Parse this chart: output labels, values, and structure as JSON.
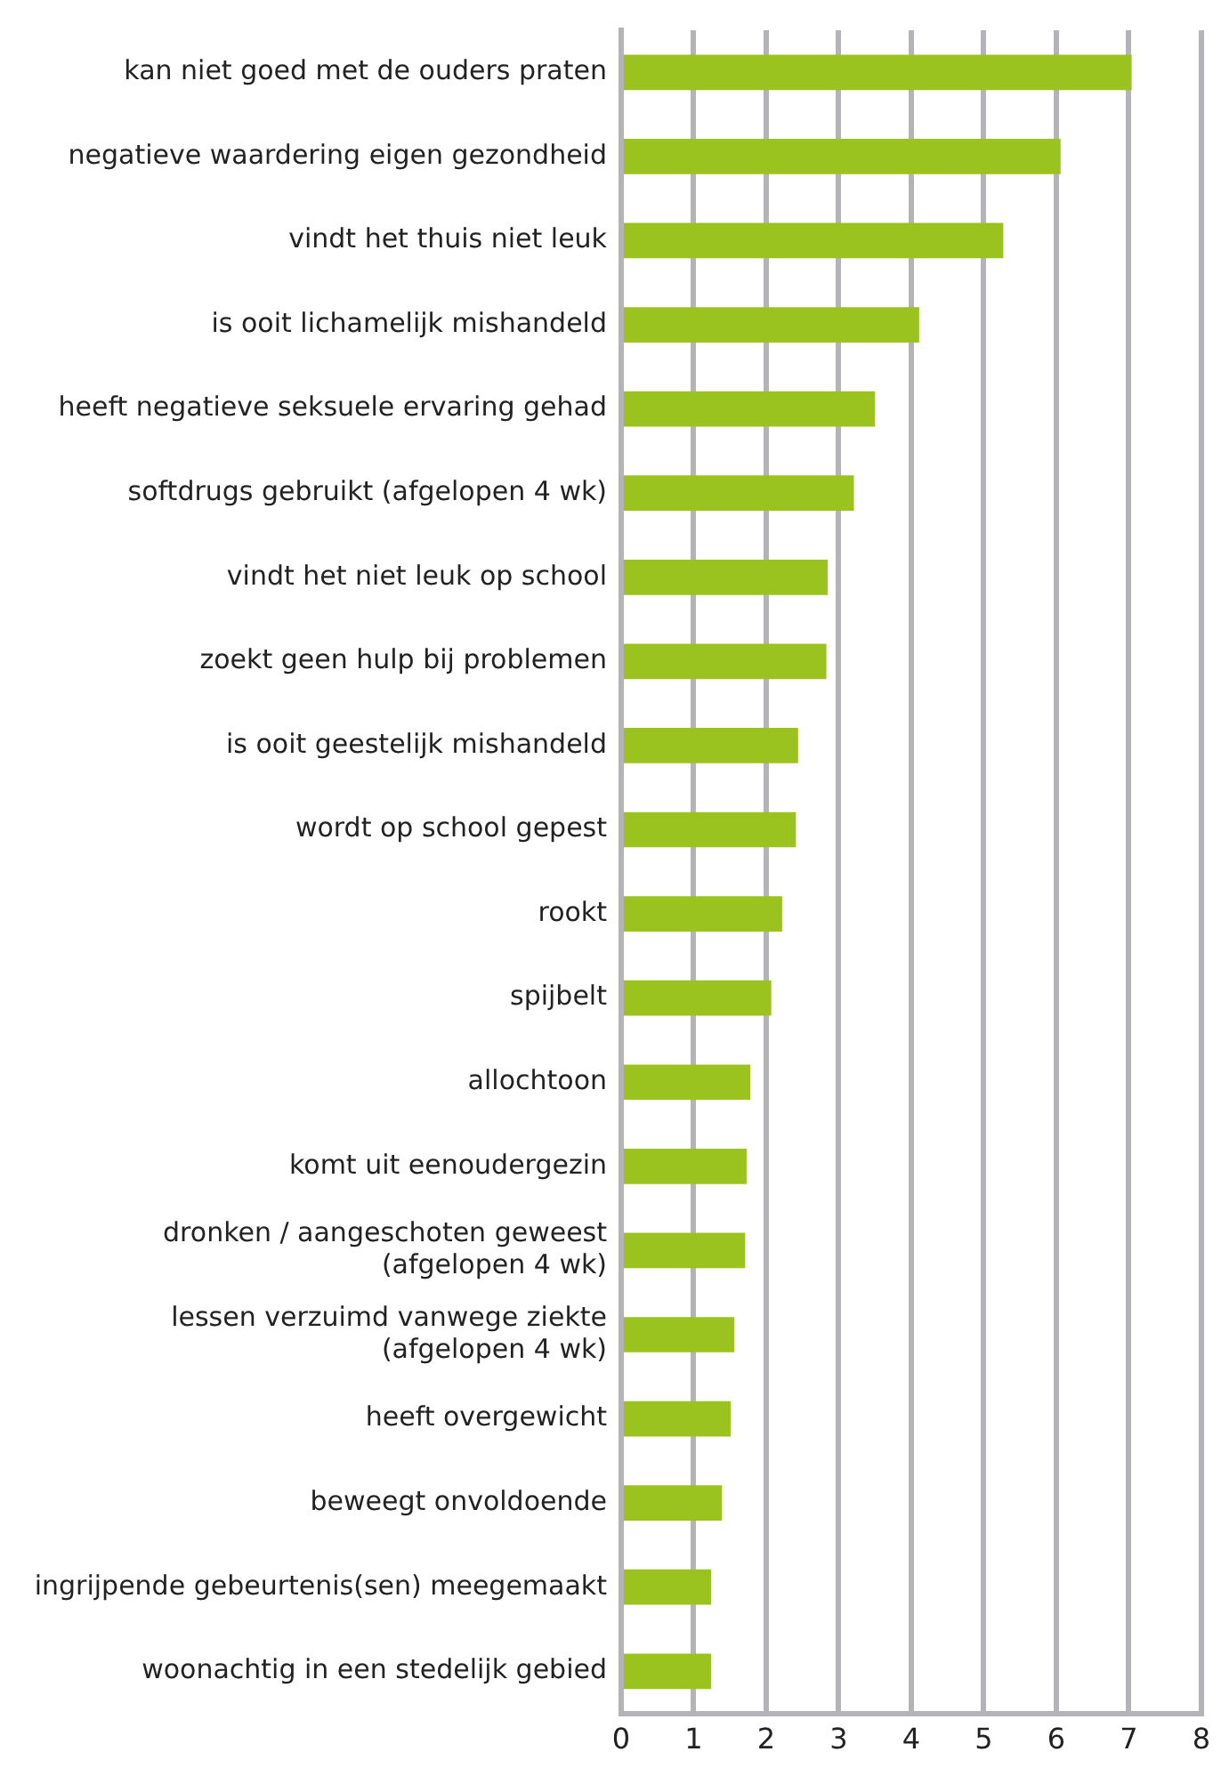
{
  "chart_data": {
    "type": "bar",
    "orientation": "horizontal",
    "color": "#9bc31f",
    "categories": [
      "kan niet goed met de ouders praten",
      "negatieve waardering eigen gezondheid",
      "vindt het thuis niet leuk",
      "is ooit lichamelijk mishandeld",
      "heeft negatieve seksuele ervaring gehad",
      "softdrugs gebruikt (afgelopen 4 wk)",
      "vindt het niet leuk op school",
      "zoekt geen hulp bij problemen",
      "is ooit geestelijk mishandeld",
      "wordt op school gepest",
      "rookt",
      "spijbelt",
      "allochtoon",
      "komt uit eenoudergezin",
      "dronken / aangeschoten geweest (afgelopen 4 wk)",
      "lessen verzuimd vanwege ziekte (afgelopen 4 wk)",
      "heeft overgewicht",
      "beweegt onvoldoende",
      "ingrijpende gebeurtenis(sen) meegemaakt",
      "woonachtig in een stedelijk gebied"
    ],
    "values": [
      7.04,
      6.06,
      5.27,
      4.11,
      3.5,
      3.21,
      2.85,
      2.83,
      2.44,
      2.41,
      2.22,
      2.07,
      1.78,
      1.73,
      1.71,
      1.56,
      1.51,
      1.39,
      1.24,
      1.24
    ],
    "xlim": [
      0,
      8
    ],
    "xticks": [
      0,
      1,
      2,
      3,
      4,
      5,
      6,
      7,
      8
    ],
    "grid": "x",
    "legend": false
  }
}
